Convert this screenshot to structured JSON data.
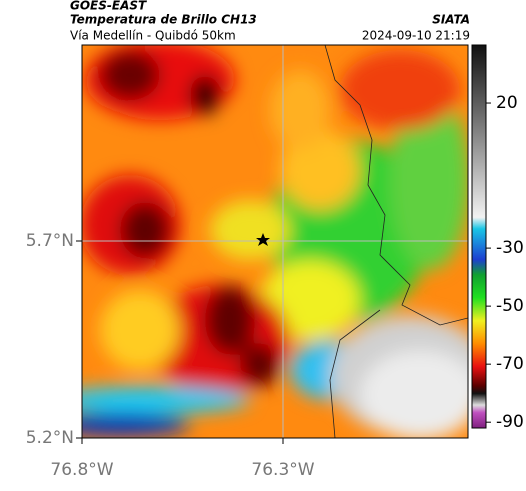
{
  "header": {
    "title": "GOES-EAST",
    "subtitle": "Temperatura de Brillo CH13",
    "location": "Vía Medellín - Quibdó 50km",
    "source": "SIATA",
    "datetime": "2024-09-10 21:19"
  },
  "map": {
    "lat_ticks": [
      {
        "value": 5.7,
        "label": "5.7°N"
      },
      {
        "value": 5.2,
        "label": "5.2°N"
      }
    ],
    "lon_ticks": [
      {
        "value": -76.8,
        "label": "76.8°W"
      },
      {
        "value": -76.3,
        "label": "76.3°W"
      }
    ]
  },
  "colorbar": {
    "clim": [
      40,
      -92
    ],
    "ticks": [
      20,
      -30,
      -50,
      -70,
      -90
    ]
  }
}
